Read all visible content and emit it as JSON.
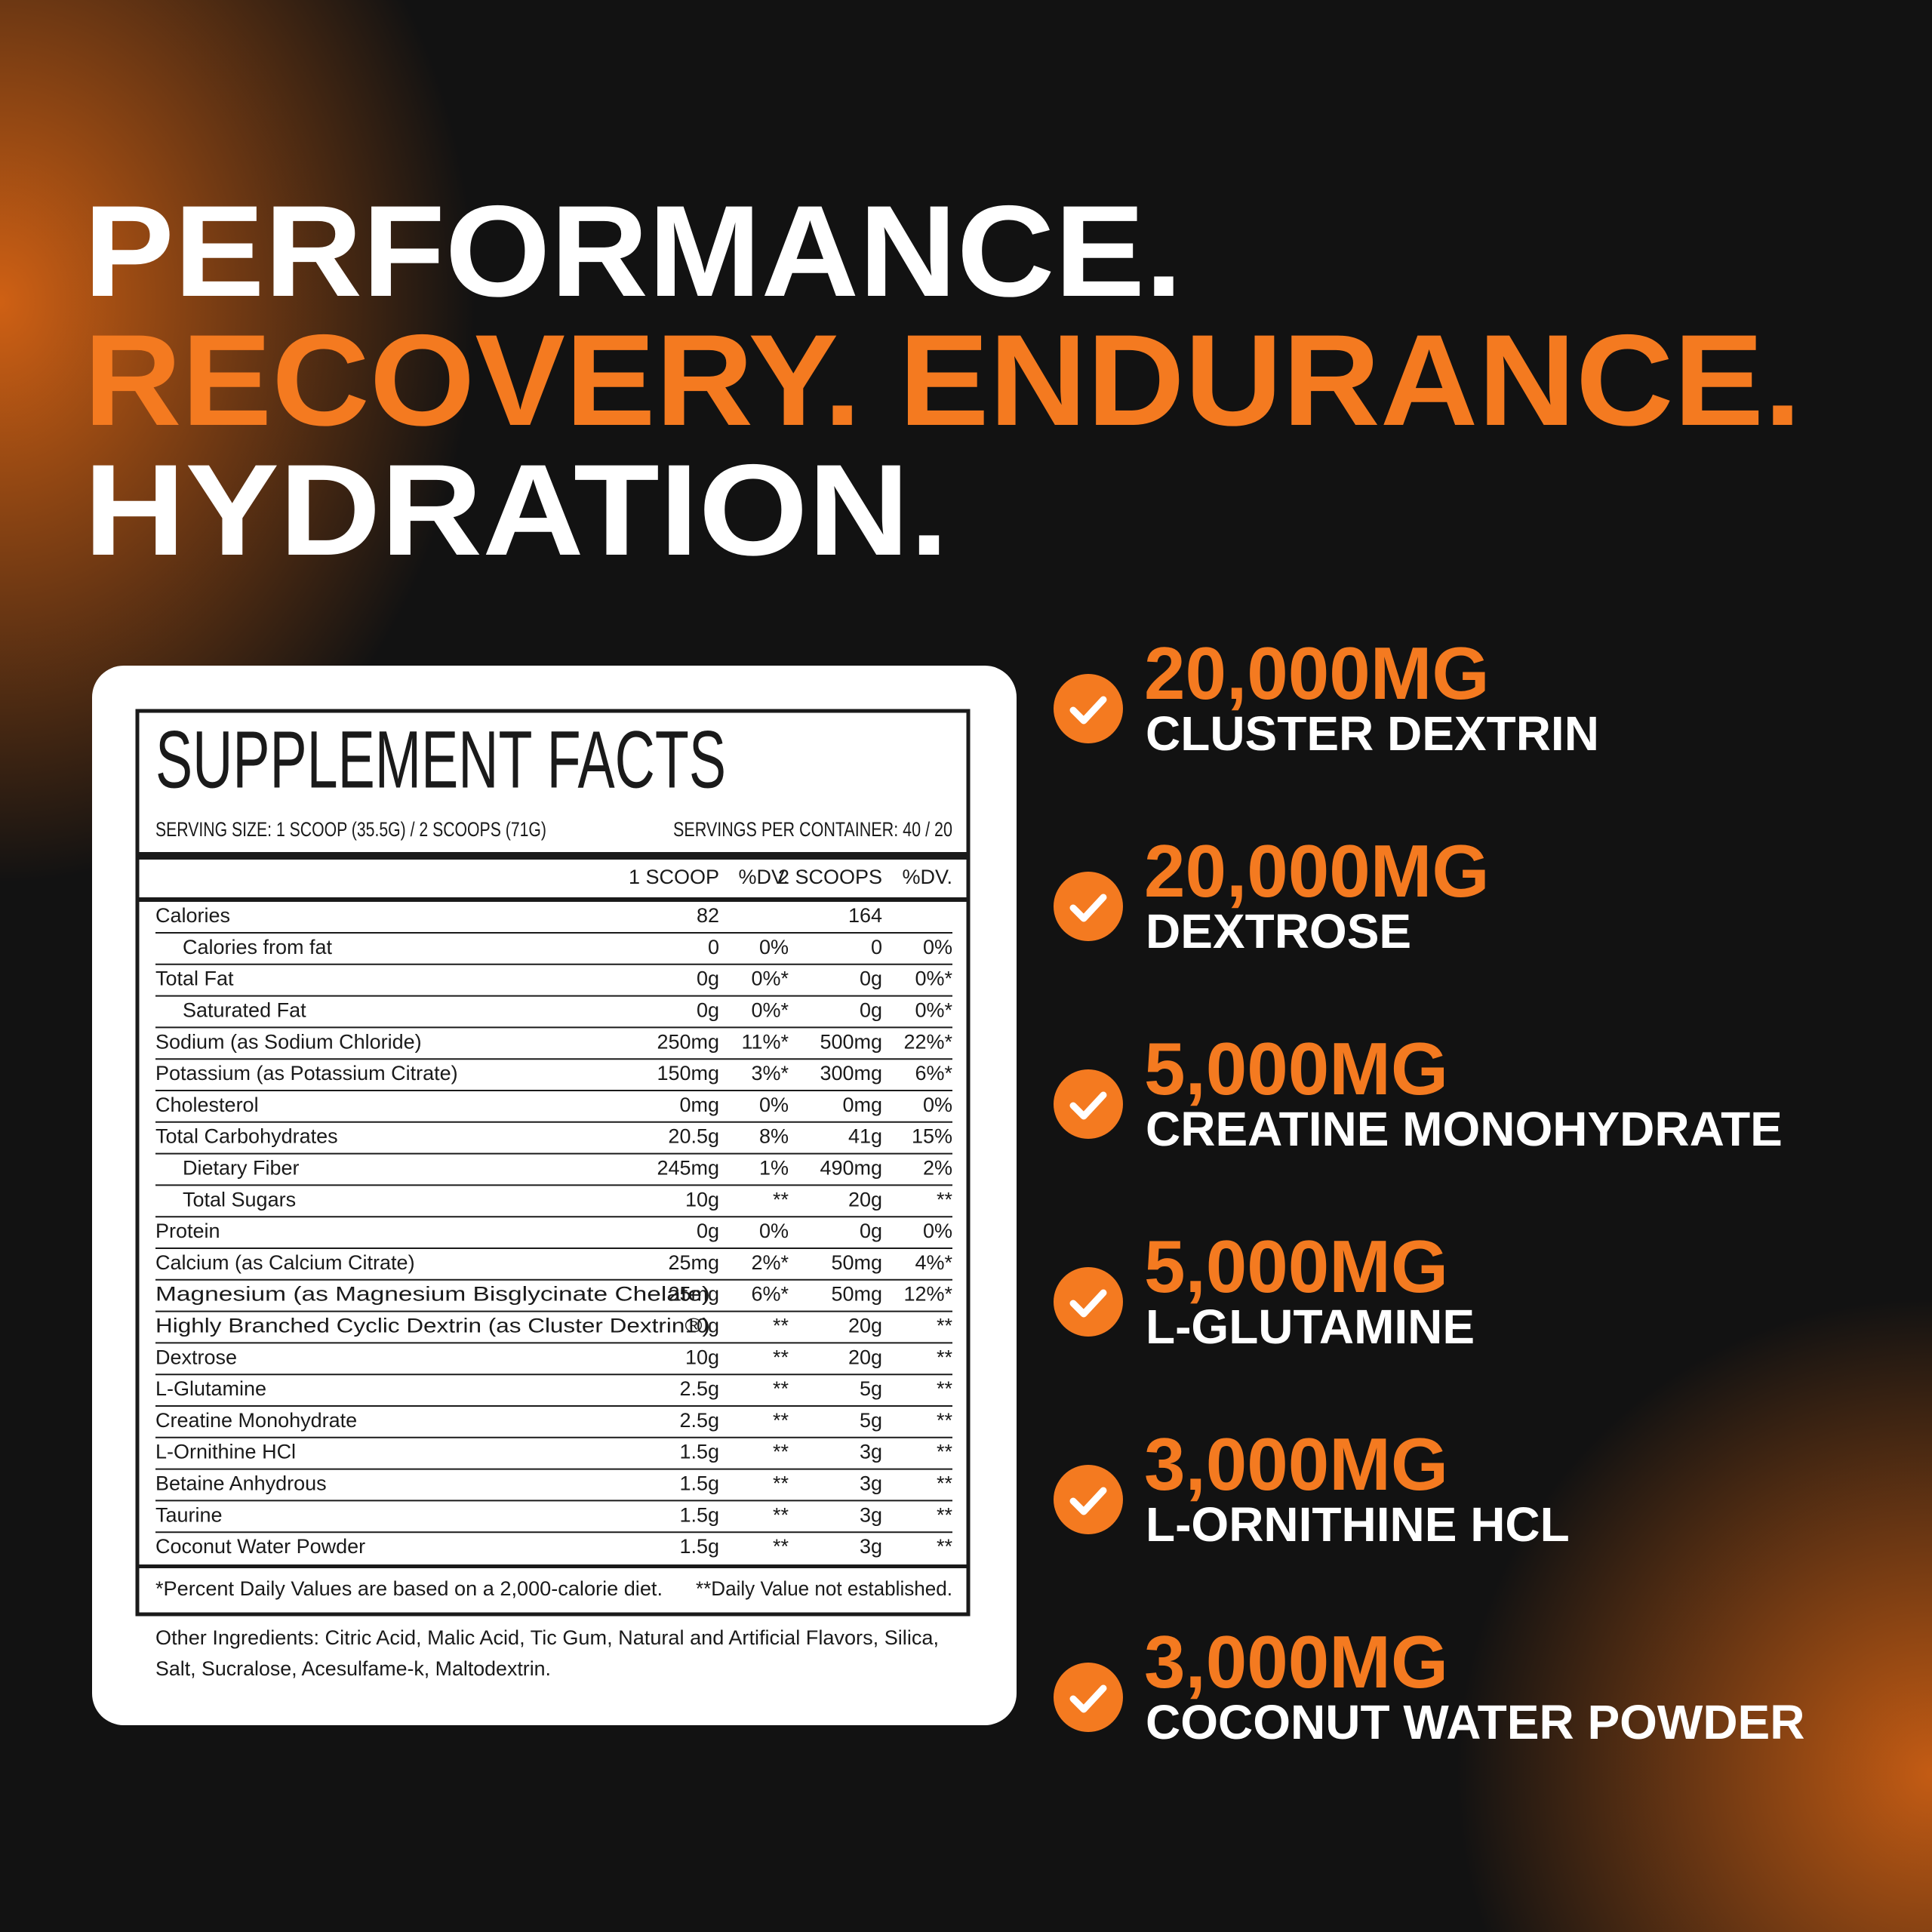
{
  "headline": [
    "PERFORMANCE.",
    "RECOVERY. ENDURANCE.",
    "HYDRATION."
  ],
  "facts": {
    "title": "SUPPLEMENT FACTS",
    "serving_size": "SERVING SIZE: 1 SCOOP (35.5G) / 2 SCOOPS (71G)",
    "servings_per_container": "SERVINGS PER CONTAINER: 40 / 20",
    "columns": [
      "1 SCOOP",
      "%DV.",
      "2 SCOOPS",
      "%DV."
    ],
    "rows": [
      [
        "Calories",
        "82",
        null,
        "164",
        null
      ],
      [
        "Calories from fat",
        "0",
        "0%",
        "0",
        "0%"
      ],
      [
        "Total Fat",
        "0g",
        "0%*",
        "0g",
        "0%*"
      ],
      [
        "Saturated Fat",
        "0g",
        "0%*",
        "0g",
        "0%*"
      ],
      [
        "Sodium (as Sodium Chloride)",
        "250mg",
        "11%*",
        "500mg",
        "22%*"
      ],
      [
        "Potassium (as Potassium Citrate)",
        "150mg",
        "3%*",
        "300mg",
        "6%*"
      ],
      [
        "Cholesterol",
        "0mg",
        "0%",
        "0mg",
        "0%"
      ],
      [
        "Total Carbohydrates",
        "20.5g",
        "8%",
        "41g",
        "15%"
      ],
      [
        "Dietary Fiber",
        "245mg",
        "1%",
        "490mg",
        "2%"
      ],
      [
        "Total Sugars",
        "10g",
        "**",
        "20g",
        "**"
      ],
      [
        "Protein",
        "0g",
        "0%",
        "0g",
        "0%"
      ],
      [
        "Calcium (as Calcium Citrate)",
        "25mg",
        "2%*",
        "50mg",
        "4%*"
      ],
      [
        "Magnesium (as Magnesium Bisglycinate Chelate)",
        "25mg",
        "6%*",
        "50mg",
        "12%*"
      ],
      [
        "Highly Branched Cyclic Dextrin (as Cluster Dextrin®)",
        "10g",
        "**",
        "20g",
        "**"
      ],
      [
        "Dextrose",
        "10g",
        "**",
        "20g",
        "**"
      ],
      [
        "L-Glutamine",
        "2.5g",
        "**",
        "5g",
        "**"
      ],
      [
        "Creatine Monohydrate",
        "2.5g",
        "**",
        "5g",
        "**"
      ],
      [
        "L-Ornithine HCl",
        "1.5g",
        "**",
        "3g",
        "**"
      ],
      [
        "Betaine Anhydrous",
        "1.5g",
        "**",
        "3g",
        "**"
      ],
      [
        "Taurine",
        "1.5g",
        "**",
        "3g",
        "**"
      ],
      [
        "Coconut Water Powder",
        "1.5g",
        "**",
        "3g",
        "**"
      ]
    ],
    "footnotes": [
      "*Percent Daily Values are based on a 2,000-calorie diet.",
      "**Daily Value not established."
    ],
    "other_ingredients": [
      "Other Ingredients:  Citric Acid, Malic Acid, Tic Gum, Natural and Artificial Flavors, Silica,",
      "Salt, Sucralose, Acesulfame-k, Maltodextrin."
    ]
  },
  "highlights": [
    {
      "amount": "20,000MG",
      "label": "CLUSTER DEXTRIN"
    },
    {
      "amount": "20,000MG",
      "label": "DEXTROSE"
    },
    {
      "amount": "5,000MG",
      "label": "CREATINE MONOHYDRATE"
    },
    {
      "amount": "5,000MG",
      "label": "L-GLUTAMINE"
    },
    {
      "amount": "3,000MG",
      "label": "L-ORNITHINE HCL"
    },
    {
      "amount": "3,000MG",
      "label": "COCONUT WATER POWDER"
    }
  ]
}
